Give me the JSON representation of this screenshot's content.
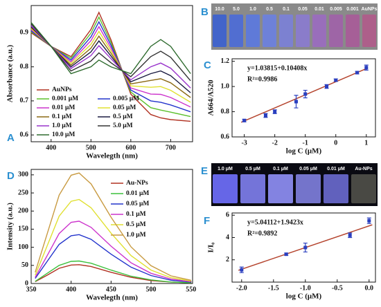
{
  "chart_data": [
    {
      "type": "line",
      "panel": "A",
      "xlabel": "Wavelegth (nm)",
      "ylabel": "Absorbance (a.u.)",
      "x": [
        350,
        400,
        450,
        500,
        520,
        550,
        600,
        650,
        675,
        700,
        750
      ],
      "xlim": [
        350,
        755
      ],
      "xticks": [
        400,
        500,
        600,
        700
      ],
      "ylim": [
        0.58,
        0.98
      ],
      "yticks": [
        0.6,
        0.7,
        0.8,
        0.9
      ],
      "legend": "lower left",
      "series": [
        {
          "name": "AuNPs",
          "color": "#b03020",
          "values": [
            0.9,
            0.86,
            0.83,
            0.91,
            0.96,
            0.88,
            0.72,
            0.66,
            0.65,
            0.645,
            0.64
          ]
        },
        {
          "name": "0.001 μM",
          "color": "#5cc02c",
          "values": [
            0.903,
            0.86,
            0.825,
            0.899,
            0.946,
            0.872,
            0.726,
            0.68,
            0.673,
            0.667,
            0.654
          ]
        },
        {
          "name": "0.005 μM",
          "color": "#2233cc",
          "values": [
            0.906,
            0.86,
            0.82,
            0.888,
            0.932,
            0.864,
            0.732,
            0.7,
            0.696,
            0.688,
            0.668
          ]
        },
        {
          "name": "0.01 μM",
          "color": "#cc33cc",
          "values": [
            0.909,
            0.86,
            0.815,
            0.877,
            0.918,
            0.856,
            0.738,
            0.72,
            0.719,
            0.71,
            0.682
          ]
        },
        {
          "name": "0.05 μM",
          "color": "#e0e030",
          "values": [
            0.912,
            0.86,
            0.81,
            0.866,
            0.904,
            0.848,
            0.744,
            0.74,
            0.742,
            0.731,
            0.696
          ]
        },
        {
          "name": "0.1 μM",
          "color": "#8b6914",
          "values": [
            0.915,
            0.86,
            0.805,
            0.855,
            0.89,
            0.84,
            0.75,
            0.76,
            0.765,
            0.753,
            0.71
          ]
        },
        {
          "name": "0.5 μM",
          "color": "#1a1a40",
          "values": [
            0.918,
            0.86,
            0.8,
            0.844,
            0.876,
            0.832,
            0.756,
            0.78,
            0.788,
            0.774,
            0.724
          ]
        },
        {
          "name": "1.0 μM",
          "color": "#9933cc",
          "values": [
            0.921,
            0.86,
            0.795,
            0.833,
            0.862,
            0.824,
            0.762,
            0.8,
            0.811,
            0.796,
            0.738
          ]
        },
        {
          "name": "5.0 μM",
          "color": "#333333",
          "values": [
            0.926,
            0.86,
            0.788,
            0.817,
            0.841,
            0.812,
            0.771,
            0.83,
            0.846,
            0.828,
            0.759
          ]
        },
        {
          "name": "10.0 μM",
          "color": "#2e6b2e",
          "values": [
            0.93,
            0.86,
            0.78,
            0.8,
            0.82,
            0.8,
            0.78,
            0.86,
            0.88,
            0.86,
            0.78
          ]
        }
      ]
    },
    {
      "type": "photo",
      "panel": "B",
      "background": "#8a8a8a",
      "labels": [
        "10.0",
        "5.0",
        "1.0",
        "0.5",
        "0.1",
        "0.05",
        "0.01",
        "0.005",
        "0.001",
        "AuNPs"
      ],
      "colors": [
        "#3a5fd0",
        "#4a6ad8",
        "#5a78e0",
        "#6a7fe0",
        "#7a80d8",
        "#8a7ad0",
        "#9a6ac0",
        "#a060a8",
        "#a85a98",
        "#b05a8a"
      ]
    },
    {
      "type": "scatter",
      "panel": "C",
      "xlabel": "log C (μM)",
      "ylabel": "A664/A520",
      "x": [
        -3,
        -2.3,
        -2,
        -1.3,
        -1,
        -0.3,
        0,
        0.7,
        1
      ],
      "values": [
        0.73,
        0.77,
        0.8,
        0.88,
        0.94,
        1.0,
        1.05,
        1.11,
        1.15
      ],
      "errors": [
        0.01,
        0.015,
        0.015,
        0.05,
        0.03,
        0.015,
        0.01,
        0.01,
        0.02
      ],
      "color": "#2a3fbf",
      "fit_line": {
        "color": "#b5452f",
        "x": [
          -3.1,
          1.05
        ],
        "values": [
          0.716,
          1.147
        ]
      },
      "annotations": [
        "y=1.03815+0.10408x",
        "R²=0.9986"
      ],
      "xlim": [
        -3.4,
        1.3
      ],
      "xticks": [
        -3,
        -2,
        -1,
        0,
        1
      ],
      "ylim": [
        0.6,
        1.22
      ],
      "yticks": [
        0.6,
        0.8,
        {
          "value": 1,
          "label": "1.0"
        },
        1.2
      ]
    },
    {
      "type": "line",
      "panel": "D",
      "xlabel": "Wavelegth (nm)",
      "ylabel": "Intensity (a.u.)",
      "x": [
        355,
        370,
        385,
        400,
        410,
        425,
        450,
        475,
        500,
        525,
        550
      ],
      "xlim": [
        350,
        552
      ],
      "xticks": [
        350,
        400,
        450,
        500,
        550
      ],
      "ylim": [
        0,
        315
      ],
      "yticks": [
        0,
        50,
        100,
        150,
        200,
        250,
        300
      ],
      "legend": "upper right",
      "series": [
        {
          "name": "Au-NPs",
          "color": "#b03020",
          "values": [
            5,
            23,
            42,
            51,
            52,
            47,
            31,
            17,
            8,
            4,
            2
          ]
        },
        {
          "name": "0.01 μM",
          "color": "#3cc03c",
          "values": [
            6,
            28,
            50,
            61,
            62,
            56,
            37,
            20,
            10,
            4,
            2
          ]
        },
        {
          "name": "0.05 μM",
          "color": "#2233cc",
          "values": [
            14,
            61,
            108,
            132,
            135,
            122,
            81,
            45,
            22,
            9,
            4
          ]
        },
        {
          "name": "0.1 μM",
          "color": "#cc33cc",
          "values": [
            17,
            77,
            138,
            169,
            172,
            155,
            103,
            57,
            28,
            12,
            5
          ]
        },
        {
          "name": "0.5 μM",
          "color": "#e0e030",
          "values": [
            23,
            104,
            186,
            227,
            232,
            209,
            139,
            77,
            37,
            16,
            7
          ]
        },
        {
          "name": "1.0 μM",
          "color": "#c89a40",
          "values": [
            31,
            137,
            244,
            299,
            305,
            275,
            183,
            101,
            49,
            21,
            9
          ]
        }
      ]
    },
    {
      "type": "photo",
      "panel": "E",
      "background": "#0a0a12",
      "labels": [
        "1.0 μM",
        "0.5 μM",
        "0.1 μM",
        "0.05 μM",
        "0.01 μM",
        "Au-NPs"
      ],
      "colors": [
        "#7070ff",
        "#8080f0",
        "#9090f8",
        "#8080e0",
        "#6a6ad0",
        "#50504a"
      ]
    },
    {
      "type": "scatter",
      "panel": "F",
      "xlabel": "log C (μM)",
      "ylabel": "I/I₀",
      "x": [
        -2,
        -1.3,
        -1,
        -0.3,
        0
      ],
      "values": [
        1.1,
        2.5,
        3.1,
        4.2,
        5.5
      ],
      "errors": [
        0.25,
        0.1,
        0.4,
        0.2,
        0.25
      ],
      "color": "#2a3fbf",
      "fit_line": {
        "color": "#b5452f",
        "x": [
          -2.05,
          0.05
        ],
        "values": [
          1.059,
          5.138
        ]
      },
      "annotations": [
        "y=5.04112+1.9423x",
        "R²=0.9892"
      ],
      "xlim": [
        -2.15,
        0.1
      ],
      "xticks": [
        {
          "value": -2,
          "label": "-2.0"
        },
        -1.5,
        {
          "value": -1,
          "label": "-1.0"
        },
        -0.5,
        {
          "value": 0,
          "label": "0.0"
        }
      ],
      "ylim": [
        0,
        6.2
      ],
      "yticks": [
        2,
        4,
        6
      ]
    }
  ]
}
